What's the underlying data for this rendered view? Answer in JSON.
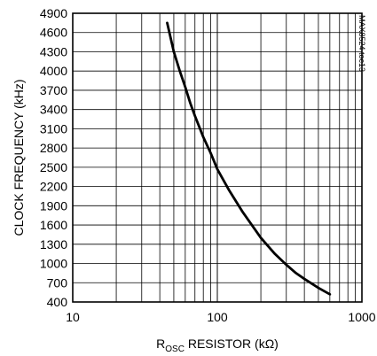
{
  "chart_data": {
    "type": "line",
    "title": "",
    "xlabel": {
      "main": "R",
      "subscript": "OSC",
      "rest": " RESISTOR (kΩ)"
    },
    "ylabel": "CLOCK FREQUENCY (kHz)",
    "x_scale": "log",
    "xlim": [
      10,
      1000
    ],
    "ylim": [
      400,
      4900
    ],
    "x_tick_labels": [
      "10",
      "100",
      "1000"
    ],
    "x_ticks": [
      10,
      100,
      1000
    ],
    "y_ticks": [
      400,
      700,
      1000,
      1300,
      1600,
      1900,
      2200,
      2500,
      2800,
      3100,
      3400,
      3700,
      4000,
      4300,
      4600,
      4900
    ],
    "y_tick_labels": [
      "400",
      "700",
      "1000",
      "1300",
      "1600",
      "1900",
      "2200",
      "2500",
      "2800",
      "3100",
      "3400",
      "3700",
      "4000",
      "4300",
      "4600",
      "4900"
    ],
    "grid": true,
    "series": [
      {
        "x": [
          45,
          50,
          55,
          60,
          65,
          70,
          80,
          90,
          100,
          120,
          150,
          200,
          250,
          300,
          350,
          400,
          500,
          600
        ],
        "y": [
          4750,
          4300,
          4000,
          3750,
          3500,
          3300,
          2970,
          2720,
          2470,
          2150,
          1800,
          1400,
          1150,
          980,
          850,
          760,
          620,
          520
        ]
      }
    ],
    "annotation": "MAX8524 toc13"
  }
}
